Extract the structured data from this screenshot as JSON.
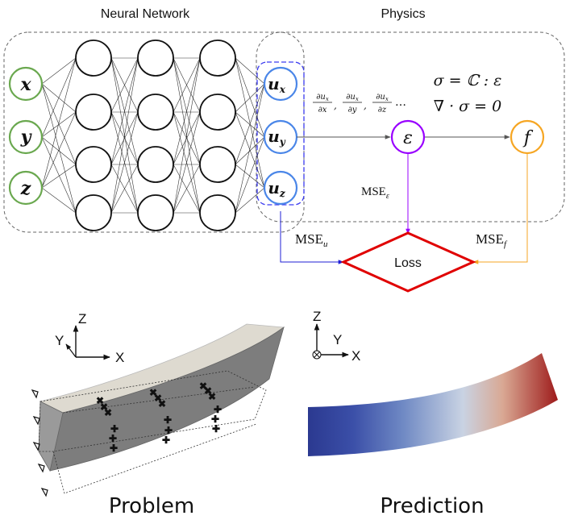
{
  "titles": {
    "network": "Neural Network",
    "physics": "Physics"
  },
  "inputs": [
    "x",
    "y",
    "z"
  ],
  "outputs": [
    {
      "sym": "u",
      "sub": "x"
    },
    {
      "sym": "u",
      "sub": "y"
    },
    {
      "sym": "u",
      "sub": "z"
    }
  ],
  "derivatives": [
    {
      "num": "∂u",
      "numsub": "x",
      "den": "∂x"
    },
    {
      "num": "∂u",
      "numsub": "x",
      "den": "∂y"
    },
    {
      "num": "∂u",
      "numsub": "x",
      "den": "∂z"
    }
  ],
  "derivative_sep": ",",
  "derivative_ellipsis": "…",
  "equations": {
    "constitutive": "σ = ℂ : ε",
    "equilibrium": "∇ · σ = 0"
  },
  "nodes": {
    "strain": "ε",
    "force": "f"
  },
  "losses": {
    "mse_label": "MSE",
    "u_sub": "u",
    "eps_sub": "ε",
    "f_sub": "f",
    "loss_label": "Loss"
  },
  "axes_problem": {
    "z": "Z",
    "y": "Y",
    "x": "X"
  },
  "axes_prediction": {
    "z": "Z",
    "y": "Y",
    "x": "X"
  },
  "captions": {
    "problem": "Problem",
    "prediction": "Prediction"
  },
  "colors": {
    "input_node": "#6aa84f",
    "output_node": "#4a86e8",
    "strain_node": "#9900ff",
    "force_node": "#f6a623",
    "loss_red": "#e00000",
    "mse_u_line": "#1f1fd6",
    "mse_eps_line": "#9900ff",
    "mse_f_line": "#f6a623",
    "output_box": "#3a3af0",
    "beam_cold": "#2b3990",
    "beam_mid": "#c9d3e3",
    "beam_hot": "#9e1b1b"
  }
}
